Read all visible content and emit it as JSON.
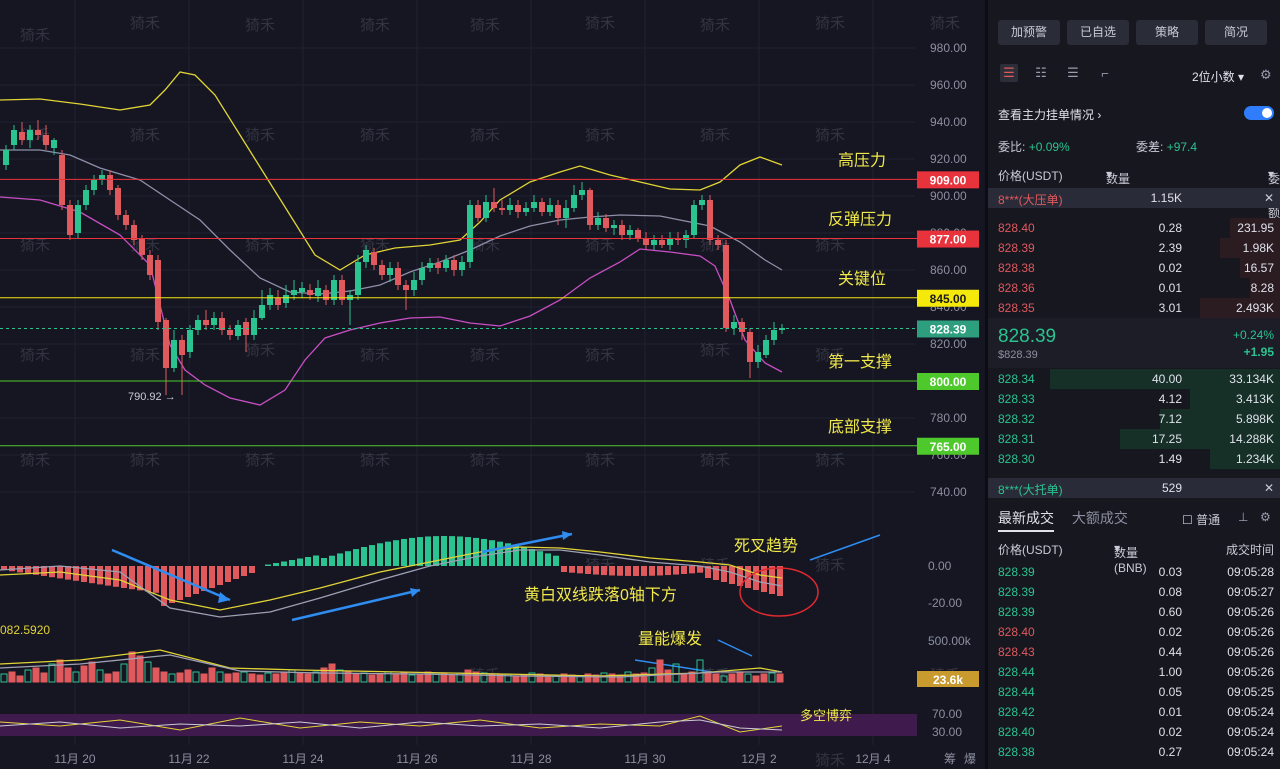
{
  "chart": {
    "y_axis_labels": [
      "980.00",
      "960.00",
      "940.00",
      "920.00",
      "900.00",
      "880.00",
      "860.00",
      "840.00",
      "820.00",
      "800.00",
      "780.00",
      "760.00",
      "740.00"
    ],
    "x_axis_labels": [
      "11月 20",
      "11月 22",
      "11月 24",
      "11月 26",
      "11月 28",
      "11月 30",
      "12月 2",
      "12月 4"
    ],
    "x_axis_extra": [
      "筹",
      "爆"
    ],
    "levels": [
      {
        "label": "高压力",
        "price": "909.00",
        "color": "#e8323c"
      },
      {
        "label": "反弹压力",
        "price": "877.00",
        "color": "#e8323c"
      },
      {
        "label": "关键位",
        "price": "845.00",
        "color": "#f5e90c"
      },
      {
        "label": "第一支撑",
        "price": "800.00",
        "color": "#4ec92b"
      },
      {
        "label": "底部支撑",
        "price": "765.00",
        "color": "#4ec92b"
      }
    ],
    "current_price_tag": "828.39",
    "low_marker": "790.92 →",
    "macd_axis": [
      "0.00",
      "-20.00"
    ],
    "macd_left_value": "082.5920",
    "volume_axis": [
      "500.00k"
    ],
    "volume_tag": "23.6k",
    "osc_axis": [
      "70.00",
      "30.00"
    ],
    "annotations": {
      "death_cross": "死叉趋势",
      "macd_below": "黄白双线跌落0轴下方",
      "volume_burst": "量能爆发",
      "bull_bear": "多空博弈"
    },
    "watermark": "猗禾"
  },
  "panel": {
    "top_buttons": [
      "加预警",
      "已自选",
      "策略",
      "简况"
    ],
    "decimals": "2位小数",
    "main_orders": "查看主力挂单情况",
    "ratio_label": "委比:",
    "ratio_value": "+0.09%",
    "diff_label": "委差:",
    "diff_value": "+97.4",
    "ob_headers": [
      "价格(USDT)",
      "数量 (BNB)",
      "委托额"
    ],
    "big_ask": {
      "label": "8***(大压单)",
      "qty": "1.15K"
    },
    "asks": [
      {
        "price": "828.40",
        "qty": "0.28",
        "total": "231.95"
      },
      {
        "price": "828.39",
        "qty": "2.39",
        "total": "1.98K"
      },
      {
        "price": "828.38",
        "qty": "0.02",
        "total": "16.57"
      },
      {
        "price": "828.36",
        "qty": "0.01",
        "total": "8.28"
      },
      {
        "price": "828.35",
        "qty": "3.01",
        "total": "2.493K"
      }
    ],
    "mid_price": "828.39",
    "mid_usd": "$828.39",
    "mid_pct": "+0.24%",
    "mid_change": "+1.95",
    "bids": [
      {
        "price": "828.34",
        "qty": "40.00",
        "total": "33.134K"
      },
      {
        "price": "828.33",
        "qty": "4.12",
        "total": "3.413K"
      },
      {
        "price": "828.32",
        "qty": "7.12",
        "total": "5.898K"
      },
      {
        "price": "828.31",
        "qty": "17.25",
        "total": "14.288K"
      },
      {
        "price": "828.30",
        "qty": "1.49",
        "total": "1.234K"
      }
    ],
    "big_bid": {
      "label": "8***(大托单)",
      "qty": "529"
    },
    "tabs": [
      "最新成交",
      "大额成交"
    ],
    "normal_label": "普通",
    "trade_headers": [
      "价格(USDT)",
      "数量(BNB)",
      "成交时间"
    ],
    "trades": [
      {
        "price": "828.39",
        "qty": "0.03",
        "time": "09:05:28",
        "side": "buy"
      },
      {
        "price": "828.39",
        "qty": "0.08",
        "time": "09:05:27",
        "side": "buy"
      },
      {
        "price": "828.39",
        "qty": "0.60",
        "time": "09:05:26",
        "side": "buy"
      },
      {
        "price": "828.40",
        "qty": "0.02",
        "time": "09:05:26",
        "side": "sell"
      },
      {
        "price": "828.43",
        "qty": "0.44",
        "time": "09:05:26",
        "side": "sell"
      },
      {
        "price": "828.44",
        "qty": "1.00",
        "time": "09:05:26",
        "side": "buy"
      },
      {
        "price": "828.44",
        "qty": "0.05",
        "time": "09:05:25",
        "side": "buy"
      },
      {
        "price": "828.42",
        "qty": "0.01",
        "time": "09:05:24",
        "side": "buy"
      },
      {
        "price": "828.40",
        "qty": "0.02",
        "time": "09:05:24",
        "side": "buy"
      },
      {
        "price": "828.38",
        "qty": "0.27",
        "time": "09:05:24",
        "side": "buy"
      }
    ]
  },
  "colors": {
    "up": "#2bc390",
    "down": "#e0595d",
    "accent": "#2f7dfc"
  }
}
